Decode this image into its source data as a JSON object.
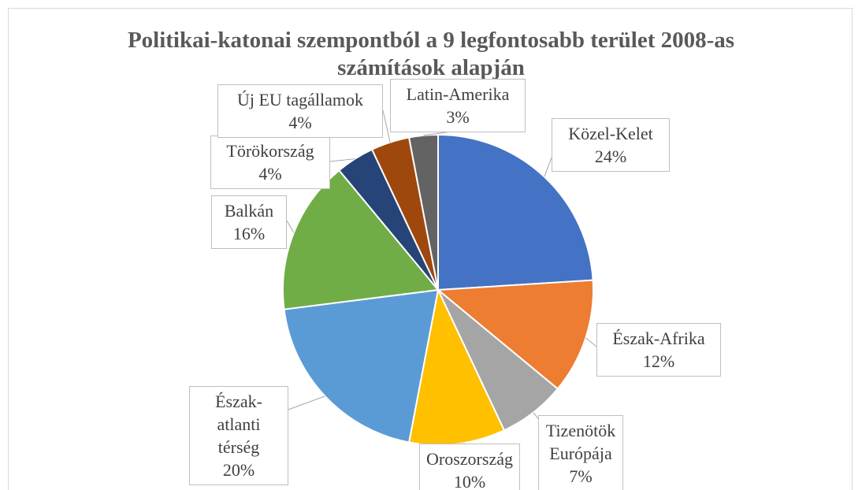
{
  "chart_data": {
    "type": "pie",
    "title": "Politikai-katonai szempontból a 9 legfontosabb terület 2008-as számítások alapján",
    "categories": [
      "Közel-Kelet",
      "Észak-Afrika",
      "Tizenötök Európája",
      "Oroszország",
      "Észak-atlanti térség",
      "Balkán",
      "Törökország",
      "Új EU tagállamok",
      "Latin-Amerika"
    ],
    "values": [
      24,
      12,
      7,
      10,
      20,
      16,
      4,
      4,
      3
    ],
    "value_labels": [
      "24%",
      "12%",
      "7%",
      "10%",
      "20%",
      "16%",
      "4%",
      "4%",
      "3%"
    ],
    "colors": [
      "#4472c4",
      "#ed7d31",
      "#a5a5a5",
      "#ffc000",
      "#5b9bd5",
      "#70ad47",
      "#264478",
      "#9e480e",
      "#636363"
    ]
  }
}
